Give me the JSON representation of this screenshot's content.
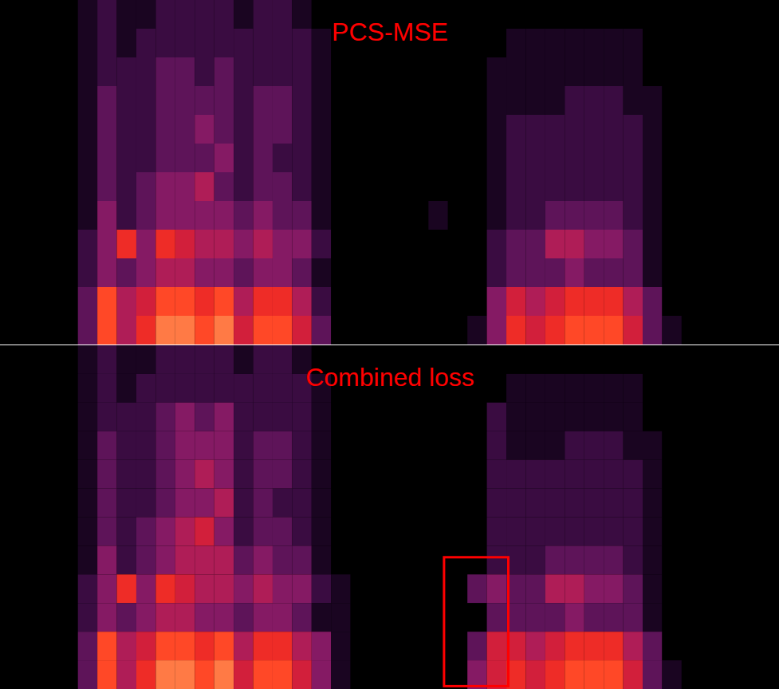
{
  "chart_data": [
    {
      "type": "heatmap",
      "title": "PCS-MSE",
      "xlim": [
        0,
        40
      ],
      "ylim": [
        0,
        12
      ],
      "tick_labels": false,
      "cells": [
        [
          0,
          0,
          0,
          0,
          0.1,
          0.2,
          0.1,
          0.1,
          0.2,
          0.2,
          0.2,
          0.2,
          0.1,
          0.2,
          0.2,
          0.1,
          0,
          0,
          0,
          0,
          0,
          0,
          0,
          0,
          0,
          0,
          0,
          0,
          0,
          0,
          0,
          0,
          0,
          0,
          0,
          0,
          0,
          0,
          0,
          0
        ],
        [
          0,
          0,
          0,
          0,
          0.1,
          0.2,
          0.1,
          0.2,
          0.2,
          0.2,
          0.2,
          0.2,
          0.2,
          0.2,
          0.2,
          0.2,
          0.1,
          0,
          0,
          0,
          0,
          0,
          0,
          0,
          0,
          0,
          0.1,
          0.1,
          0.1,
          0.1,
          0.1,
          0.1,
          0.1,
          0,
          0,
          0,
          0,
          0,
          0,
          0
        ],
        [
          0,
          0,
          0,
          0,
          0.1,
          0.2,
          0.2,
          0.2,
          0.3,
          0.3,
          0.2,
          0.3,
          0.2,
          0.2,
          0.2,
          0.2,
          0.1,
          0,
          0,
          0,
          0,
          0,
          0,
          0,
          0,
          0.1,
          0.1,
          0.1,
          0.1,
          0.1,
          0.1,
          0.1,
          0.1,
          0,
          0,
          0,
          0,
          0,
          0,
          0
        ],
        [
          0,
          0,
          0,
          0,
          0.1,
          0.3,
          0.2,
          0.2,
          0.3,
          0.3,
          0.3,
          0.3,
          0.2,
          0.3,
          0.3,
          0.2,
          0.1,
          0,
          0,
          0,
          0,
          0,
          0,
          0,
          0,
          0.1,
          0.1,
          0.1,
          0.1,
          0.2,
          0.2,
          0.2,
          0.1,
          0.1,
          0,
          0,
          0,
          0,
          0,
          0
        ],
        [
          0,
          0,
          0,
          0,
          0.1,
          0.3,
          0.2,
          0.2,
          0.3,
          0.3,
          0.4,
          0.3,
          0.2,
          0.3,
          0.3,
          0.2,
          0.1,
          0,
          0,
          0,
          0,
          0,
          0,
          0,
          0,
          0.1,
          0.2,
          0.2,
          0.2,
          0.2,
          0.2,
          0.2,
          0.2,
          0.1,
          0,
          0,
          0,
          0,
          0,
          0
        ],
        [
          0,
          0,
          0,
          0,
          0.1,
          0.3,
          0.2,
          0.2,
          0.3,
          0.3,
          0.3,
          0.4,
          0.2,
          0.3,
          0.2,
          0.2,
          0.1,
          0,
          0,
          0,
          0,
          0,
          0,
          0,
          0,
          0.1,
          0.2,
          0.2,
          0.2,
          0.2,
          0.2,
          0.2,
          0.2,
          0.1,
          0,
          0,
          0,
          0,
          0,
          0
        ],
        [
          0,
          0,
          0,
          0,
          0.1,
          0.3,
          0.2,
          0.3,
          0.4,
          0.4,
          0.5,
          0.3,
          0.2,
          0.3,
          0.3,
          0.2,
          0.1,
          0,
          0,
          0,
          0,
          0,
          0,
          0,
          0,
          0.1,
          0.2,
          0.2,
          0.2,
          0.2,
          0.2,
          0.2,
          0.2,
          0.1,
          0,
          0,
          0,
          0,
          0,
          0
        ],
        [
          0,
          0,
          0,
          0,
          0.1,
          0.4,
          0.2,
          0.3,
          0.4,
          0.4,
          0.4,
          0.4,
          0.3,
          0.4,
          0.3,
          0.3,
          0.1,
          0,
          0,
          0,
          0,
          0,
          0.1,
          0,
          0,
          0.1,
          0.2,
          0.2,
          0.3,
          0.3,
          0.3,
          0.3,
          0.2,
          0.1,
          0,
          0,
          0,
          0,
          0,
          0
        ],
        [
          0,
          0,
          0,
          0,
          0.2,
          0.4,
          0.7,
          0.4,
          0.7,
          0.6,
          0.5,
          0.5,
          0.4,
          0.5,
          0.4,
          0.4,
          0.2,
          0,
          0,
          0,
          0,
          0,
          0,
          0,
          0,
          0.2,
          0.3,
          0.3,
          0.5,
          0.5,
          0.4,
          0.4,
          0.3,
          0.1,
          0,
          0,
          0,
          0,
          0,
          0
        ],
        [
          0,
          0,
          0,
          0,
          0.2,
          0.4,
          0.3,
          0.4,
          0.5,
          0.5,
          0.4,
          0.4,
          0.3,
          0.4,
          0.4,
          0.3,
          0.1,
          0,
          0,
          0,
          0,
          0,
          0,
          0,
          0,
          0.2,
          0.3,
          0.3,
          0.3,
          0.4,
          0.3,
          0.3,
          0.3,
          0.1,
          0,
          0,
          0,
          0,
          0,
          0
        ],
        [
          0,
          0,
          0,
          0,
          0.3,
          0.8,
          0.5,
          0.6,
          0.8,
          0.8,
          0.7,
          0.8,
          0.5,
          0.7,
          0.7,
          0.5,
          0.2,
          0,
          0,
          0,
          0,
          0,
          0,
          0,
          0,
          0.4,
          0.6,
          0.5,
          0.6,
          0.7,
          0.7,
          0.7,
          0.5,
          0.3,
          0,
          0,
          0,
          0,
          0,
          0
        ],
        [
          0,
          0,
          0,
          0,
          0.3,
          0.8,
          0.5,
          0.7,
          0.9,
          0.9,
          0.8,
          0.9,
          0.6,
          0.8,
          0.8,
          0.6,
          0.3,
          0,
          0,
          0,
          0,
          0,
          0,
          0,
          0.1,
          0.4,
          0.7,
          0.6,
          0.7,
          0.8,
          0.8,
          0.8,
          0.6,
          0.3,
          0.1,
          0,
          0,
          0,
          0,
          0
        ]
      ]
    },
    {
      "type": "heatmap",
      "title": "Combined loss",
      "xlim": [
        0,
        40
      ],
      "ylim": [
        0,
        12
      ],
      "tick_labels": false,
      "cells": [
        [
          0,
          0,
          0,
          0,
          0.1,
          0.2,
          0.1,
          0.1,
          0.2,
          0.2,
          0.2,
          0.2,
          0.1,
          0.2,
          0.2,
          0.1,
          0,
          0,
          0,
          0,
          0,
          0,
          0,
          0,
          0,
          0,
          0,
          0,
          0,
          0,
          0,
          0,
          0,
          0,
          0,
          0,
          0,
          0,
          0,
          0
        ],
        [
          0,
          0,
          0,
          0,
          0.1,
          0.2,
          0.1,
          0.2,
          0.2,
          0.2,
          0.2,
          0.2,
          0.2,
          0.2,
          0.2,
          0.2,
          0.1,
          0,
          0,
          0,
          0,
          0,
          0,
          0,
          0,
          0,
          0.1,
          0.1,
          0.1,
          0.1,
          0.1,
          0.1,
          0.1,
          0,
          0,
          0,
          0,
          0,
          0,
          0
        ],
        [
          0,
          0,
          0,
          0,
          0.1,
          0.2,
          0.2,
          0.2,
          0.3,
          0.4,
          0.3,
          0.4,
          0.2,
          0.2,
          0.2,
          0.2,
          0.1,
          0,
          0,
          0,
          0,
          0,
          0,
          0,
          0,
          0.2,
          0.1,
          0.1,
          0.1,
          0.1,
          0.1,
          0.1,
          0.1,
          0,
          0,
          0,
          0,
          0,
          0,
          0
        ],
        [
          0,
          0,
          0,
          0,
          0.1,
          0.3,
          0.2,
          0.2,
          0.3,
          0.4,
          0.4,
          0.4,
          0.2,
          0.3,
          0.3,
          0.2,
          0.1,
          0,
          0,
          0,
          0,
          0,
          0,
          0,
          0,
          0.2,
          0.1,
          0.1,
          0.1,
          0.2,
          0.2,
          0.2,
          0.1,
          0.1,
          0,
          0,
          0,
          0,
          0,
          0
        ],
        [
          0,
          0,
          0,
          0,
          0.1,
          0.3,
          0.2,
          0.2,
          0.3,
          0.4,
          0.5,
          0.4,
          0.2,
          0.3,
          0.3,
          0.2,
          0.1,
          0,
          0,
          0,
          0,
          0,
          0,
          0,
          0,
          0.2,
          0.2,
          0.2,
          0.2,
          0.2,
          0.2,
          0.2,
          0.2,
          0.1,
          0,
          0,
          0,
          0,
          0,
          0
        ],
        [
          0,
          0,
          0,
          0,
          0.1,
          0.3,
          0.2,
          0.2,
          0.3,
          0.4,
          0.4,
          0.5,
          0.2,
          0.3,
          0.2,
          0.2,
          0.1,
          0,
          0,
          0,
          0,
          0,
          0,
          0,
          0,
          0.2,
          0.2,
          0.2,
          0.2,
          0.2,
          0.2,
          0.2,
          0.2,
          0.1,
          0,
          0,
          0,
          0,
          0,
          0
        ],
        [
          0,
          0,
          0,
          0,
          0.1,
          0.3,
          0.2,
          0.3,
          0.4,
          0.5,
          0.6,
          0.4,
          0.2,
          0.3,
          0.3,
          0.2,
          0.1,
          0,
          0,
          0,
          0,
          0,
          0,
          0,
          0,
          0.2,
          0.2,
          0.2,
          0.2,
          0.2,
          0.2,
          0.2,
          0.2,
          0.1,
          0,
          0,
          0,
          0,
          0,
          0
        ],
        [
          0,
          0,
          0,
          0,
          0.1,
          0.4,
          0.2,
          0.3,
          0.4,
          0.5,
          0.5,
          0.5,
          0.3,
          0.4,
          0.3,
          0.3,
          0.1,
          0,
          0,
          0,
          0,
          0,
          0,
          0,
          0,
          0.2,
          0.2,
          0.2,
          0.3,
          0.3,
          0.3,
          0.3,
          0.2,
          0.1,
          0,
          0,
          0,
          0,
          0,
          0
        ],
        [
          0,
          0,
          0,
          0,
          0.2,
          0.4,
          0.7,
          0.4,
          0.7,
          0.6,
          0.5,
          0.5,
          0.4,
          0.5,
          0.4,
          0.4,
          0.2,
          0.1,
          0,
          0,
          0,
          0,
          0,
          0,
          0.3,
          0.4,
          0.3,
          0.3,
          0.5,
          0.5,
          0.4,
          0.4,
          0.3,
          0.1,
          0,
          0,
          0,
          0,
          0,
          0
        ],
        [
          0,
          0,
          0,
          0,
          0.2,
          0.4,
          0.3,
          0.4,
          0.5,
          0.5,
          0.4,
          0.4,
          0.3,
          0.4,
          0.4,
          0.3,
          0.1,
          0.1,
          0,
          0,
          0,
          0,
          0,
          0,
          0,
          0.3,
          0.3,
          0.3,
          0.3,
          0.4,
          0.3,
          0.3,
          0.3,
          0.1,
          0,
          0,
          0,
          0,
          0,
          0
        ],
        [
          0,
          0,
          0,
          0,
          0.3,
          0.8,
          0.5,
          0.6,
          0.8,
          0.8,
          0.7,
          0.8,
          0.5,
          0.7,
          0.7,
          0.5,
          0.4,
          0.1,
          0,
          0,
          0,
          0,
          0,
          0,
          0.3,
          0.6,
          0.6,
          0.5,
          0.6,
          0.7,
          0.7,
          0.7,
          0.5,
          0.3,
          0,
          0,
          0,
          0,
          0,
          0
        ],
        [
          0,
          0,
          0,
          0,
          0.3,
          0.8,
          0.5,
          0.7,
          0.9,
          0.9,
          0.8,
          0.9,
          0.6,
          0.8,
          0.8,
          0.6,
          0.4,
          0.1,
          0,
          0,
          0,
          0,
          0,
          0,
          0.4,
          0.6,
          0.7,
          0.6,
          0.7,
          0.8,
          0.8,
          0.8,
          0.6,
          0.3,
          0.1,
          0,
          0,
          0,
          0,
          0
        ]
      ],
      "annotations": [
        {
          "type": "rect",
          "x": [
            22.8,
            26.1
          ],
          "y": [
            7.4,
            11.9
          ],
          "color": "#ff0000"
        }
      ]
    }
  ]
}
